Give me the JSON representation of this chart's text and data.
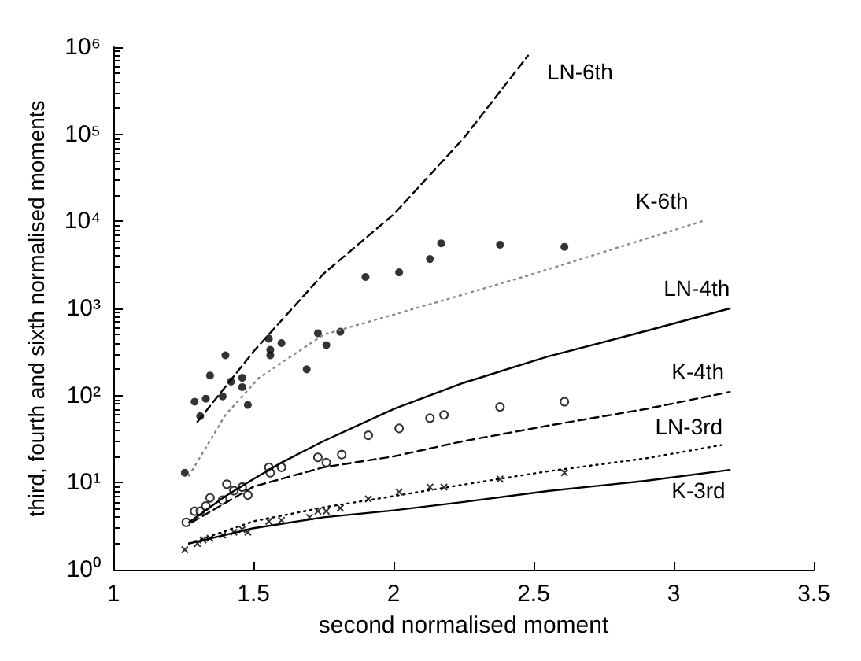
{
  "chart_data": {
    "type": "line",
    "xlabel": "second normalised moment",
    "ylabel": "third, fourth and sixth normalised moments",
    "xlim": [
      1,
      3.5
    ],
    "xticks": [
      1,
      1.5,
      2,
      2.5,
      3,
      3.5
    ],
    "ylim": [
      1,
      1000000
    ],
    "yticks": [
      {
        "value": 1,
        "label": "10⁰"
      },
      {
        "value": 10,
        "label": "10¹"
      },
      {
        "value": 100,
        "label": "10²"
      },
      {
        "value": 1000,
        "label": "10³"
      },
      {
        "value": 10000,
        "label": "10⁴"
      },
      {
        "value": 100000,
        "label": "10⁵"
      },
      {
        "value": 1000000,
        "label": "10⁶"
      }
    ],
    "log": "y",
    "grid": false,
    "legend": false,
    "series": [
      {
        "name": "LN-6th",
        "color": "#000000",
        "line_style": "dashed",
        "marker": "none",
        "x": [
          1.3,
          1.5,
          1.75,
          2,
          2.25,
          2.48
        ],
        "values": [
          50,
          320,
          2500,
          12000,
          90000,
          800000
        ]
      },
      {
        "name": "K-6th",
        "color": "#888888",
        "line_style": "dotted",
        "marker": "none",
        "x": [
          1.27,
          1.4,
          1.52,
          1.75,
          2,
          2.2,
          2.5,
          2.8,
          3.1
        ],
        "values": [
          12,
          60,
          160,
          500,
          850,
          1300,
          2500,
          5000,
          10000
        ]
      },
      {
        "name": "LN-4th",
        "color": "#000000",
        "line_style": "solid",
        "marker": "none",
        "x": [
          1.27,
          1.4,
          1.5,
          1.6,
          1.75,
          2,
          2.25,
          2.55,
          2.9,
          3.2
        ],
        "values": [
          3.5,
          7,
          11,
          17,
          30,
          70,
          140,
          280,
          550,
          1000
        ]
      },
      {
        "name": "K-4th",
        "color": "#000000",
        "line_style": "dashed",
        "marker": "none",
        "x": [
          1.28,
          1.5,
          1.75,
          2,
          2.25,
          2.55,
          2.9,
          3.2
        ],
        "values": [
          3.5,
          9,
          15,
          20,
          30,
          45,
          70,
          110
        ]
      },
      {
        "name": "LN-3rd",
        "color": "#000000",
        "line_style": "dotted",
        "marker": "none",
        "x": [
          1.27,
          1.5,
          1.75,
          2,
          2.25,
          2.55,
          2.9,
          3.17
        ],
        "values": [
          2,
          3.6,
          5.2,
          7,
          9.5,
          13.5,
          19,
          27
        ]
      },
      {
        "name": "K-3rd",
        "color": "#000000",
        "line_style": "solid",
        "marker": "none",
        "x": [
          1.27,
          1.5,
          1.75,
          2,
          2.25,
          2.55,
          2.9,
          3.2
        ],
        "values": [
          2,
          3,
          4,
          4.8,
          6,
          8,
          10.5,
          14
        ]
      },
      {
        "type": "scatter",
        "color": "#000000",
        "marker": "circle",
        "x": [
          1.255,
          1.29,
          1.31,
          1.33,
          1.345,
          1.39,
          1.4,
          1.42,
          1.46,
          1.46,
          1.48,
          1.555,
          1.56,
          1.56,
          1.6,
          1.69,
          1.73,
          1.76,
          1.81,
          1.9,
          2.02,
          2.13,
          2.17,
          2.38,
          2.61
        ],
        "values": [
          13,
          85,
          58,
          92,
          170,
          98,
          290,
          145,
          160,
          125,
          78,
          450,
          335,
          290,
          400,
          200,
          520,
          380,
          540,
          2300,
          2600,
          3700,
          5600,
          5400,
          5100
        ]
      },
      {
        "type": "scatter",
        "color": "#000000",
        "marker": "open circle",
        "x": [
          1.26,
          1.29,
          1.31,
          1.33,
          1.345,
          1.39,
          1.405,
          1.43,
          1.46,
          1.48,
          1.555,
          1.56,
          1.6,
          1.73,
          1.76,
          1.815,
          1.91,
          2.02,
          2.13,
          2.18,
          2.38,
          2.61
        ],
        "values": [
          3.5,
          4.7,
          4.7,
          5.4,
          6.7,
          6.3,
          9.6,
          8.1,
          8.9,
          7.2,
          15,
          13,
          15,
          19.5,
          17,
          21,
          35,
          42,
          55,
          60,
          74,
          85
        ]
      },
      {
        "type": "scatter",
        "color": "#000000",
        "marker": "cross",
        "x": [
          1.255,
          1.3,
          1.32,
          1.345,
          1.39,
          1.43,
          1.46,
          1.48,
          1.555,
          1.6,
          1.7,
          1.73,
          1.76,
          1.81,
          1.91,
          2.02,
          2.13,
          2.18,
          2.38,
          2.61
        ],
        "values": [
          1.7,
          2.0,
          2.2,
          2.3,
          2.5,
          2.7,
          2.9,
          2.7,
          3.6,
          3.7,
          4.0,
          4.7,
          4.7,
          5.1,
          6.5,
          7.8,
          8.9,
          8.9,
          11,
          13
        ]
      }
    ]
  }
}
